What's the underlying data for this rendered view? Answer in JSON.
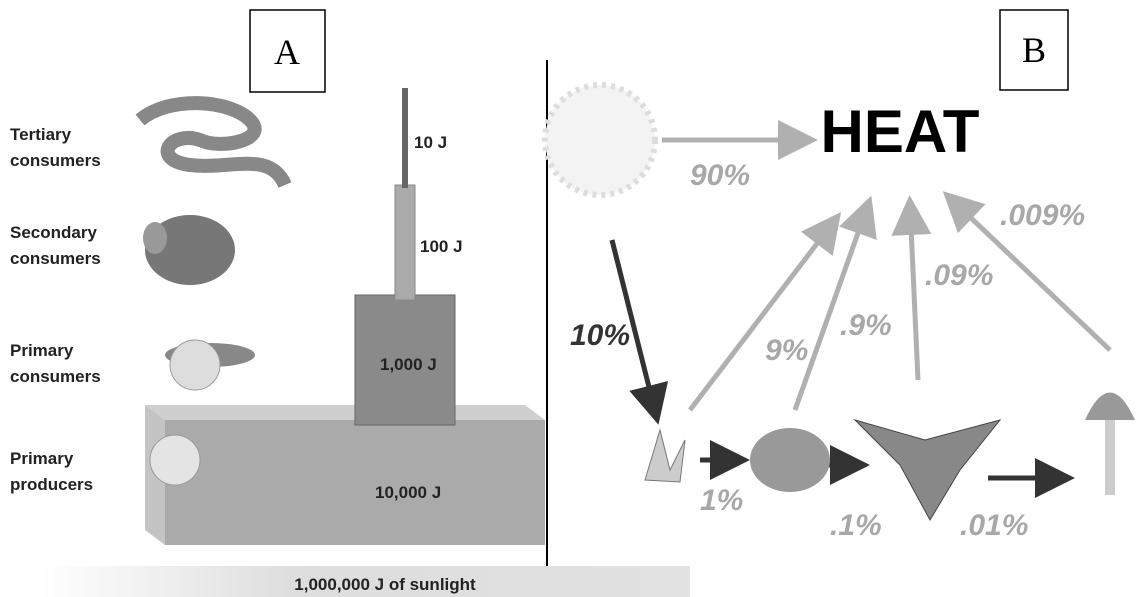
{
  "panel_a": {
    "label": "A",
    "levels": [
      {
        "name": [
          "Tertiary",
          "consumers"
        ],
        "energy": "10 J"
      },
      {
        "name": [
          "Secondary",
          "consumers"
        ],
        "energy": "100 J"
      },
      {
        "name": [
          "Primary",
          "consumers"
        ],
        "energy": "1,000 J"
      },
      {
        "name": [
          "Primary",
          "producers"
        ],
        "energy": "10,000 J"
      }
    ],
    "sunlight": "1,000,000 J of sunlight"
  },
  "panel_b": {
    "label": "B",
    "heat": "HEAT",
    "to_heat": [
      "90%",
      "9%",
      ".9%",
      ".09%",
      ".009%"
    ],
    "to_chain": [
      "10%",
      "1%",
      ".1%",
      ".01%"
    ]
  }
}
